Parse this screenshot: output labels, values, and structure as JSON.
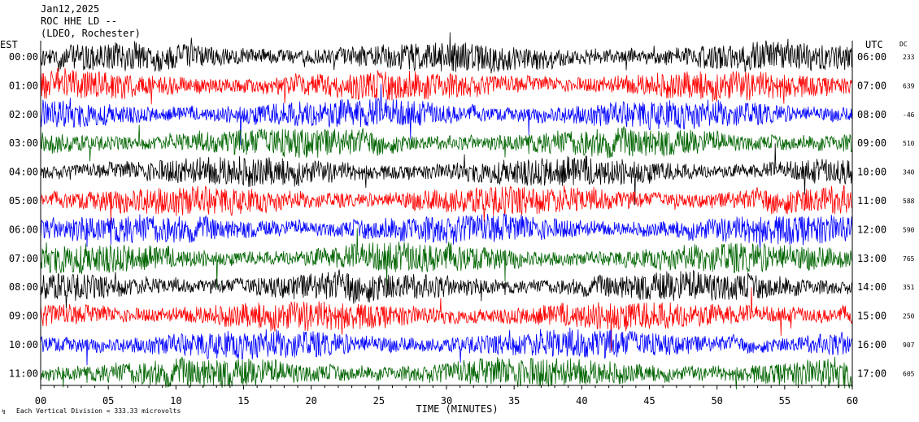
{
  "header": {
    "date": "Jan12,2025",
    "station": "ROC HHE LD --",
    "network": "(LDEO, Rochester)"
  },
  "left_timezone": "EST",
  "right_timezone": "UTC",
  "dc_label": "DC",
  "footer_note": "Each Vertical Division =  333.33 microvolts",
  "chart_data": {
    "type": "line",
    "title": "Jan12,2025 ROC HHE LD -- (LDEO, Rochester)",
    "xlabel": "TIME (MINUTES)",
    "x_ticks": [
      "00",
      "05",
      "10",
      "15",
      "20",
      "25",
      "30",
      "35",
      "40",
      "45",
      "50",
      "55",
      "60"
    ],
    "xlim": [
      0,
      60
    ],
    "left_axis_label": "EST",
    "right_axis_label": "UTC",
    "trace_colors": [
      "#000000",
      "#ff0000",
      "#0000ff",
      "#006400"
    ],
    "series": [
      {
        "est": "00:00",
        "utc": "06:00",
        "dc": "233"
      },
      {
        "est": "01:00",
        "utc": "07:00",
        "dc": "639"
      },
      {
        "est": "02:00",
        "utc": "08:00",
        "dc": "-46"
      },
      {
        "est": "03:00",
        "utc": "09:00",
        "dc": "510"
      },
      {
        "est": "04:00",
        "utc": "10:00",
        "dc": "340"
      },
      {
        "est": "05:00",
        "utc": "11:00",
        "dc": "588"
      },
      {
        "est": "06:00",
        "utc": "12:00",
        "dc": "590"
      },
      {
        "est": "07:00",
        "utc": "13:00",
        "dc": "765"
      },
      {
        "est": "08:00",
        "utc": "14:00",
        "dc": "351"
      },
      {
        "est": "09:00",
        "utc": "15:00",
        "dc": "250"
      },
      {
        "est": "10:00",
        "utc": "16:00",
        "dc": "907"
      },
      {
        "est": "11:00",
        "utc": "17:00",
        "dc": "605"
      }
    ],
    "grid": false,
    "legend": "none"
  }
}
